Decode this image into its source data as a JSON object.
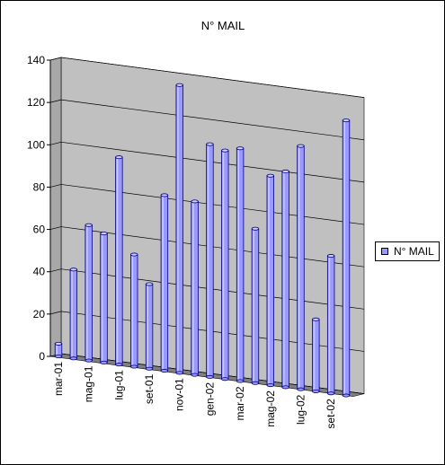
{
  "chart_data": {
    "type": "bar",
    "style": "3d-cylinder",
    "title": "N° MAIL",
    "xlabel": "",
    "ylabel": "",
    "ylim": [
      0,
      140
    ],
    "yticks": [
      0,
      20,
      40,
      60,
      80,
      100,
      120,
      140
    ],
    "grid": true,
    "legend_position": "right",
    "categories": [
      "mar-01",
      "apr-01",
      "mag-01",
      "giu-01",
      "lug-01",
      "ago-01",
      "set-01",
      "ott-01",
      "nov-01",
      "dic-01",
      "gen-02",
      "feb-02",
      "mar-02",
      "apr-02",
      "mag-02",
      "giu-02",
      "lug-02",
      "ago-02",
      "set-02",
      "ott-02"
    ],
    "category_labels_shown": [
      "mar-01",
      "",
      "mag-01",
      "",
      "lug-01",
      "",
      "set-01",
      "",
      "nov-01",
      "",
      "gen-02",
      "",
      "mar-02",
      "",
      "mag-02",
      "",
      "lug-02",
      "",
      "set-02",
      ""
    ],
    "series": [
      {
        "name": "N° MAIL",
        "color": "#9999ff",
        "values": [
          6,
          42,
          64,
          61,
          98,
          53,
          40,
          83,
          136,
          82,
          110,
          108,
          110,
          73,
          99,
          102,
          115,
          34,
          65,
          130
        ]
      }
    ],
    "colors": {
      "wall": "#c0c0c0",
      "floor": "#808080",
      "bar_fill": "#9999ff",
      "bar_edge": "#000080"
    }
  }
}
